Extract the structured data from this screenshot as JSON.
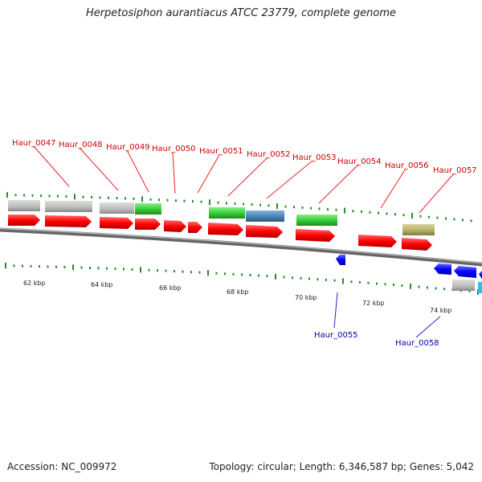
{
  "title": "Herpetosiphon aurantiacus ATCC 23779, complete genome",
  "accession_text": "Accession: NC_009972",
  "summary_text": "Topology: circular; Length: 6,346,587 bp; Genes: 5,042",
  "colors": {
    "forward": "#ff0000",
    "reverse": "#0000ff",
    "grey": "#bbbbbb",
    "green": "#33cc33",
    "steelblue": "#4682b4",
    "khaki": "#b5b06a",
    "tick": "#2a8a2a",
    "label_top": "#cc0000",
    "label_bottom": "#0000aa"
  },
  "kbp_labels": [
    "62 kbp",
    "64 kbp",
    "66 kbp",
    "68 kbp",
    "70 kbp",
    "72 kbp",
    "74 kbp"
  ],
  "top_gene_labels": [
    "Haur_0047",
    "Haur_0048",
    "Haur_0049",
    "Haur_0050",
    "Haur_0051",
    "Haur_0052",
    "Haur_0053",
    "Haur_0054",
    "Haur_0056",
    "Haur_0057"
  ],
  "bottom_gene_labels": [
    "Haur_0055",
    "Haur_0058"
  ]
}
